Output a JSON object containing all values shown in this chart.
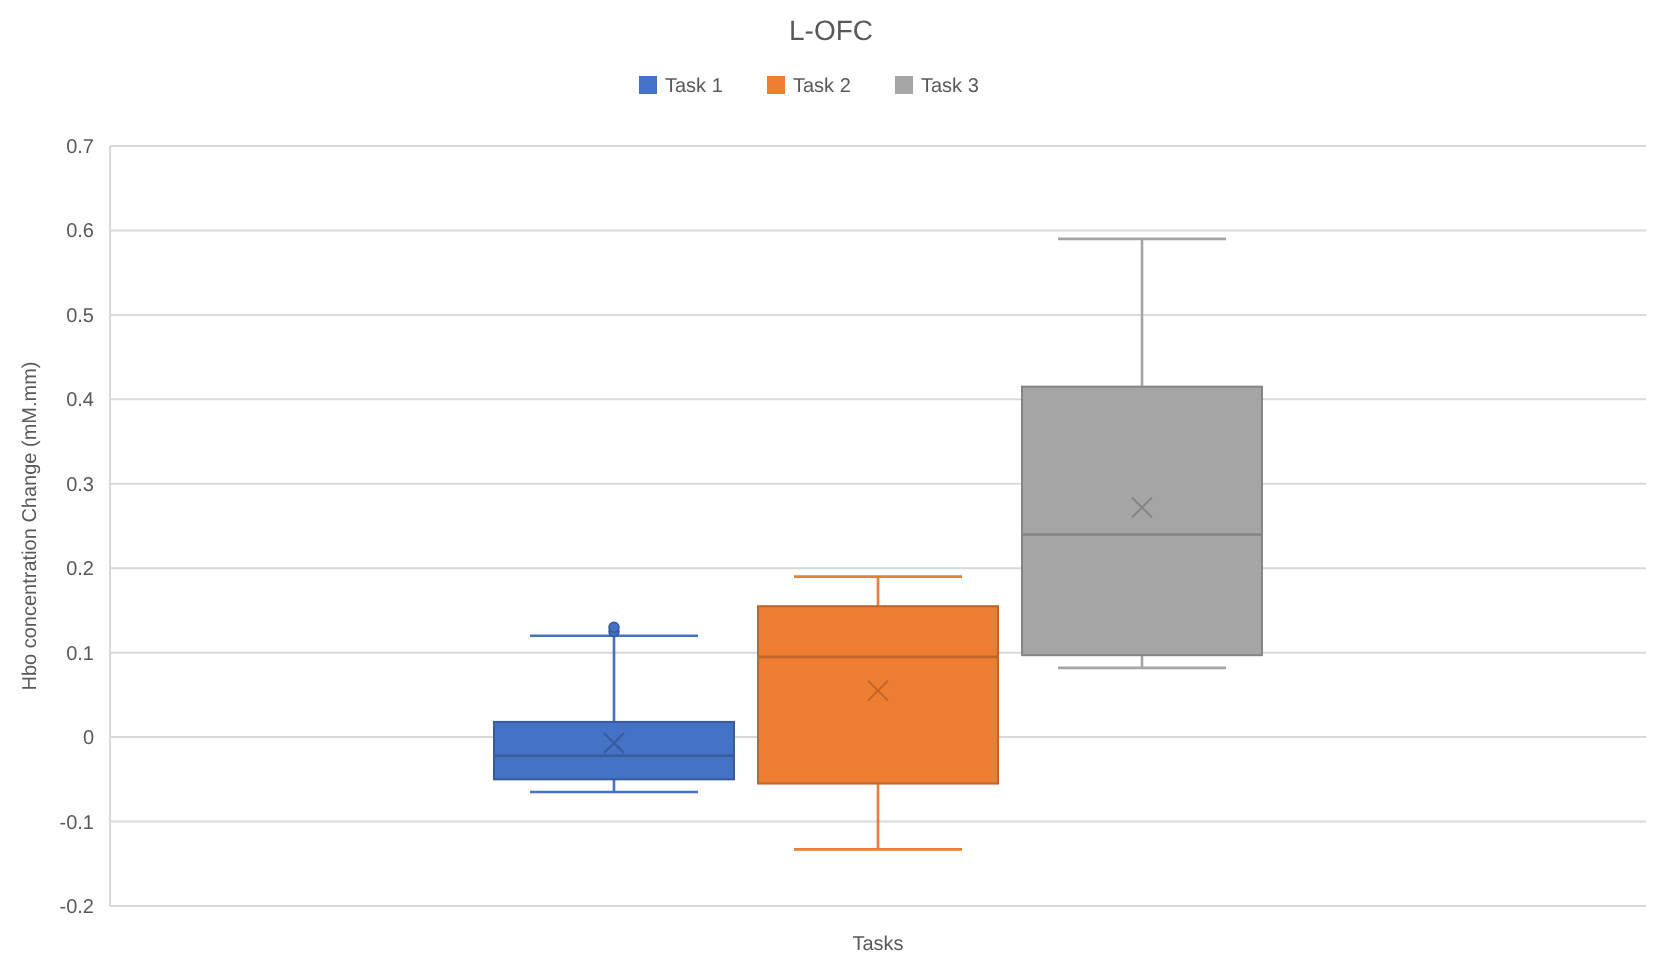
{
  "chart_data": {
    "type": "box",
    "title": "L-OFC",
    "ylabel": "Hbo concentration Change (mM.mm)",
    "categories": [
      "Tasks"
    ],
    "ylim": [
      -0.2,
      0.7
    ],
    "yticks": [
      -0.2,
      -0.1,
      0,
      0.1,
      0.2,
      0.3,
      0.4,
      0.5,
      0.6,
      0.7
    ],
    "grid": "y",
    "legend": "top",
    "series": [
      {
        "name": "Task 1",
        "color": "#4472c4",
        "boxes": [
          {
            "low": -0.065,
            "q1": -0.05,
            "median": -0.022,
            "q3": 0.018,
            "high": 0.12,
            "mean": -0.007,
            "outliers": [
              0.125,
              0.13
            ]
          }
        ]
      },
      {
        "name": "Task 2",
        "color": "#ed7d31",
        "boxes": [
          {
            "low": -0.133,
            "q1": -0.055,
            "median": 0.095,
            "q3": 0.155,
            "high": 0.19,
            "mean": 0.055
          }
        ]
      },
      {
        "name": "Task 3",
        "color": "#a5a5a5",
        "boxes": [
          {
            "low": 0.082,
            "q1": 0.097,
            "median": 0.24,
            "q3": 0.415,
            "high": 0.59,
            "mean": 0.272
          }
        ]
      }
    ]
  }
}
